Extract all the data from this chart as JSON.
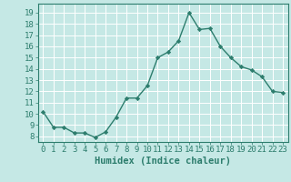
{
  "x": [
    0,
    1,
    2,
    3,
    4,
    5,
    6,
    7,
    8,
    9,
    10,
    11,
    12,
    13,
    14,
    15,
    16,
    17,
    18,
    19,
    20,
    21,
    22,
    23
  ],
  "y": [
    10.2,
    8.8,
    8.8,
    8.3,
    8.3,
    7.9,
    8.4,
    9.7,
    11.4,
    11.4,
    12.5,
    15.0,
    15.5,
    16.5,
    19.0,
    17.5,
    17.6,
    16.0,
    15.0,
    14.2,
    13.9,
    13.3,
    12.0,
    11.9
  ],
  "line_color": "#2d7d6d",
  "marker": "D",
  "marker_size": 2.2,
  "linewidth": 1.0,
  "bg_color": "#c5e8e5",
  "grid_color": "#ffffff",
  "xlabel": "Humidex (Indice chaleur)",
  "ylim": [
    7.5,
    19.8
  ],
  "xlim": [
    -0.5,
    23.5
  ],
  "yticks": [
    8,
    9,
    10,
    11,
    12,
    13,
    14,
    15,
    16,
    17,
    18,
    19
  ],
  "xticks": [
    0,
    1,
    2,
    3,
    4,
    5,
    6,
    7,
    8,
    9,
    10,
    11,
    12,
    13,
    14,
    15,
    16,
    17,
    18,
    19,
    20,
    21,
    22,
    23
  ],
  "tick_fontsize": 6.5,
  "xlabel_fontsize": 7.5
}
